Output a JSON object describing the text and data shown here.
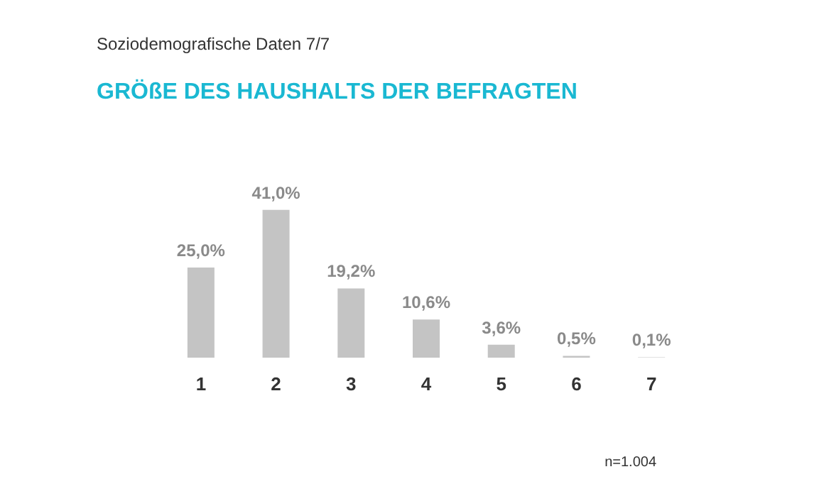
{
  "chart_data": {
    "type": "bar",
    "subtitle": "Soziodemografische Daten 7/7",
    "title": "GRÖßE DES HAUSHALTS DER BEFRAGTEN",
    "categories": [
      "1",
      "2",
      "3",
      "4",
      "5",
      "6",
      "7"
    ],
    "values": [
      25.0,
      41.0,
      19.2,
      10.6,
      3.6,
      0.5,
      0.1
    ],
    "value_labels": [
      "25,0%",
      "41,0%",
      "19,2%",
      "10,6%",
      "3,6%",
      "0,5%",
      "0,1%"
    ],
    "color": "#c4c4c4",
    "annotations": [
      "n=1.004"
    ]
  }
}
